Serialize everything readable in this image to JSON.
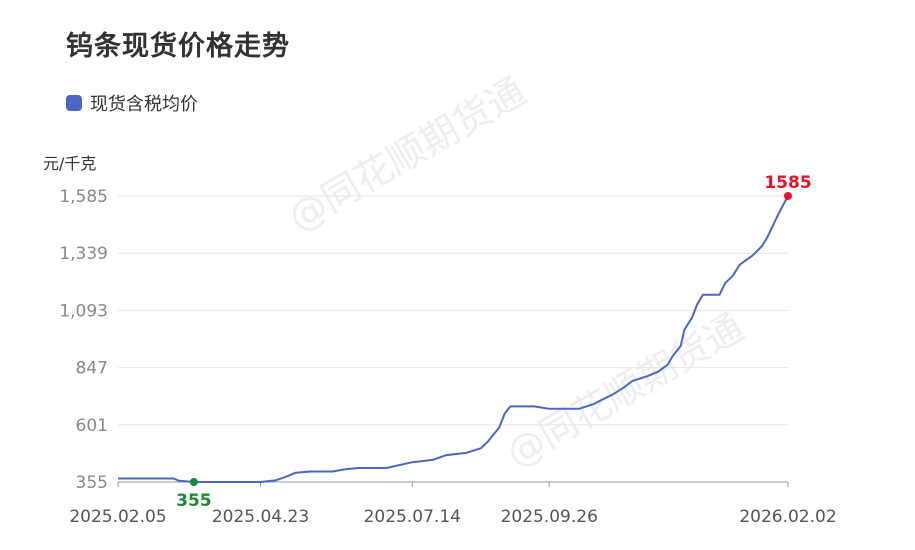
{
  "title": "钨条现货价格走势",
  "watermark": "@同花顺期货通",
  "chart_data": {
    "type": "line",
    "title": "钨条现货价格走势",
    "ylabel": "元/千克",
    "xlabel": "",
    "ylim": [
      355,
      1585
    ],
    "yticks": [
      "355",
      "601",
      "847",
      "1,093",
      "1,339",
      "1,585"
    ],
    "ytick_values": [
      355,
      601,
      847,
      1093,
      1339,
      1585
    ],
    "xticks": [
      "2025.02.05",
      "2025.04.23",
      "2025.07.14",
      "2025.09.26",
      "2026.02.02"
    ],
    "grid": true,
    "legend_position": "top-left",
    "series": [
      {
        "name": "现货含税均价",
        "color": "#4a67c4",
        "values": [
          [
            "2025-02-05",
            370
          ],
          [
            "2025-03-07",
            370
          ],
          [
            "2025-03-10",
            360
          ],
          [
            "2025-03-18",
            355
          ],
          [
            "2025-04-23",
            355
          ],
          [
            "2025-05-01",
            362
          ],
          [
            "2025-05-06",
            375
          ],
          [
            "2025-05-12",
            395
          ],
          [
            "2025-05-20",
            400
          ],
          [
            "2025-06-01",
            400
          ],
          [
            "2025-06-08",
            410
          ],
          [
            "2025-06-15",
            415
          ],
          [
            "2025-06-30",
            415
          ],
          [
            "2025-07-14",
            440
          ],
          [
            "2025-07-25",
            450
          ],
          [
            "2025-08-01",
            470
          ],
          [
            "2025-08-12",
            480
          ],
          [
            "2025-08-20",
            500
          ],
          [
            "2025-08-24",
            530
          ],
          [
            "2025-08-27",
            560
          ],
          [
            "2025-08-30",
            590
          ],
          [
            "2025-09-02",
            650
          ],
          [
            "2025-09-05",
            680
          ],
          [
            "2025-09-18",
            680
          ],
          [
            "2025-09-26",
            670
          ],
          [
            "2025-10-12",
            670
          ],
          [
            "2025-10-20",
            690
          ],
          [
            "2025-10-26",
            715
          ],
          [
            "2025-10-30",
            730
          ],
          [
            "2025-11-05",
            760
          ],
          [
            "2025-11-10",
            790
          ],
          [
            "2025-11-18",
            810
          ],
          [
            "2025-11-24",
            830
          ],
          [
            "2025-11-29",
            860
          ],
          [
            "2025-12-02",
            900
          ],
          [
            "2025-12-06",
            940
          ],
          [
            "2025-12-08",
            1010
          ],
          [
            "2025-12-12",
            1060
          ],
          [
            "2025-12-15",
            1120
          ],
          [
            "2025-12-18",
            1160
          ],
          [
            "2025-12-27",
            1160
          ],
          [
            "2025-12-30",
            1210
          ],
          [
            "2026-01-03",
            1240
          ],
          [
            "2026-01-07",
            1290
          ],
          [
            "2026-01-14",
            1330
          ],
          [
            "2026-01-19",
            1370
          ],
          [
            "2026-01-22",
            1410
          ],
          [
            "2026-01-25",
            1460
          ],
          [
            "2026-01-28",
            1510
          ],
          [
            "2026-02-02",
            1585
          ]
        ]
      }
    ],
    "annotations": [
      {
        "label": "1585",
        "x": "2026-02-02",
        "y": 1585,
        "color": "#e8102a"
      },
      {
        "label": "355",
        "x": "2025-03-18",
        "y": 355,
        "color": "#1a8a33"
      }
    ]
  }
}
